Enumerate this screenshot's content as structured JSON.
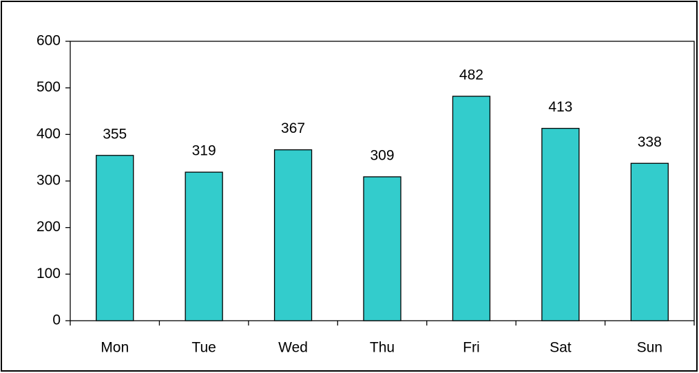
{
  "chart_data": {
    "type": "bar",
    "categories": [
      "Mon",
      "Tue",
      "Wed",
      "Thu",
      "Fri",
      "Sat",
      "Sun"
    ],
    "values": [
      355,
      319,
      367,
      309,
      482,
      413,
      338
    ],
    "color": "#33cccc",
    "ylim": [
      0,
      600
    ],
    "yticks": [
      0,
      100,
      200,
      300,
      400,
      500,
      600
    ],
    "grid": false
  }
}
